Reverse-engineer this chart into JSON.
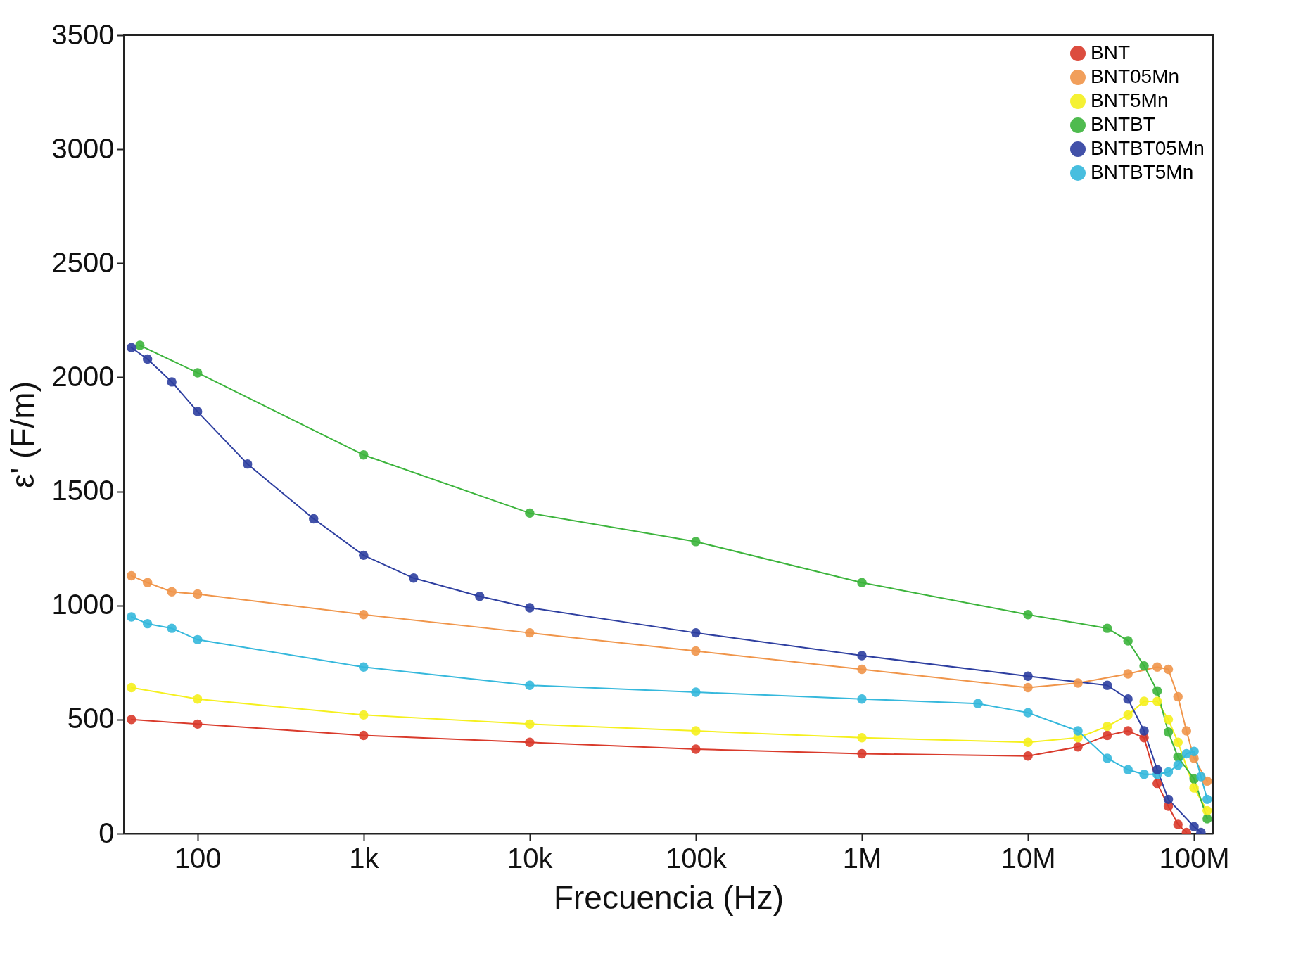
{
  "chart_data": {
    "type": "line",
    "xlabel": "Frecuencia (Hz)",
    "ylabel": "ε' (F/m)",
    "log": "x",
    "grid": false,
    "legend": "top right",
    "marker": "circle",
    "line_style": "solid",
    "xlim": [
      36,
      130000000
    ],
    "xticks": [
      {
        "value": 100,
        "label": "100"
      },
      {
        "value": 1000,
        "label": "1k"
      },
      {
        "value": 10000,
        "label": "10k"
      },
      {
        "value": 100000,
        "label": "100k"
      },
      {
        "value": 1000000,
        "label": "1M"
      },
      {
        "value": 10000000,
        "label": "10M"
      },
      {
        "value": 100000000,
        "label": "100M"
      }
    ],
    "ylim": [
      0,
      3500
    ],
    "yticks": [
      0,
      500,
      1000,
      1500,
      2000,
      2500,
      3000,
      3500
    ],
    "series": [
      {
        "name": "BNT",
        "color": "#d93a2b",
        "x": [
          40,
          100,
          1000,
          10000,
          100000,
          1000000,
          10000000,
          20000000,
          30000000,
          40000000,
          50000000,
          60000000,
          70000000,
          80000000,
          90000000
        ],
        "values": [
          500,
          480,
          430,
          400,
          370,
          350,
          340,
          380,
          430,
          450,
          420,
          220,
          120,
          40,
          5
        ]
      },
      {
        "name": "BNT05Mn",
        "color": "#f0954a",
        "x": [
          40,
          50,
          70,
          100,
          1000,
          10000,
          100000,
          1000000,
          10000000,
          20000000,
          40000000,
          60000000,
          70000000,
          80000000,
          90000000,
          100000000,
          120000000
        ],
        "values": [
          1130,
          1100,
          1060,
          1050,
          960,
          880,
          800,
          720,
          640,
          660,
          700,
          730,
          720,
          600,
          450,
          330,
          230
        ]
      },
      {
        "name": "BNT5Mn",
        "color": "#f5f01e",
        "x": [
          40,
          100,
          1000,
          10000,
          100000,
          1000000,
          10000000,
          20000000,
          30000000,
          40000000,
          50000000,
          60000000,
          70000000,
          80000000,
          100000000,
          120000000
        ],
        "values": [
          640,
          590,
          520,
          480,
          450,
          420,
          400,
          420,
          470,
          520,
          580,
          580,
          500,
          400,
          200,
          100
        ]
      },
      {
        "name": "BNTBT",
        "color": "#3cb43c",
        "x": [
          45,
          100,
          1000,
          10000,
          100000,
          1000000,
          10000000,
          30000000,
          40000000,
          50000000,
          60000000,
          70000000,
          80000000,
          100000000,
          120000000
        ],
        "values": [
          2140,
          2020,
          1660,
          1405,
          1280,
          1100,
          960,
          900,
          845,
          735,
          625,
          445,
          335,
          240,
          65
        ]
      },
      {
        "name": "BNTBT05Mn",
        "color": "#2e3fa0",
        "x": [
          40,
          50,
          70,
          100,
          200,
          500,
          1000,
          2000,
          5000,
          10000,
          100000,
          1000000,
          10000000,
          30000000,
          40000000,
          50000000,
          60000000,
          70000000,
          100000000,
          110000000
        ],
        "values": [
          2130,
          2080,
          1980,
          1850,
          1620,
          1380,
          1220,
          1120,
          1040,
          990,
          880,
          780,
          690,
          650,
          590,
          450,
          280,
          150,
          30,
          5
        ]
      },
      {
        "name": "BNTBT5Mn",
        "color": "#35b8dc",
        "x": [
          40,
          50,
          70,
          100,
          1000,
          10000,
          100000,
          1000000,
          5000000,
          10000000,
          20000000,
          30000000,
          40000000,
          50000000,
          60000000,
          70000000,
          80000000,
          90000000,
          100000000,
          110000000,
          120000000
        ],
        "values": [
          950,
          920,
          900,
          850,
          730,
          650,
          620,
          590,
          570,
          530,
          450,
          330,
          280,
          260,
          260,
          270,
          300,
          350,
          360,
          250,
          150
        ]
      }
    ]
  }
}
